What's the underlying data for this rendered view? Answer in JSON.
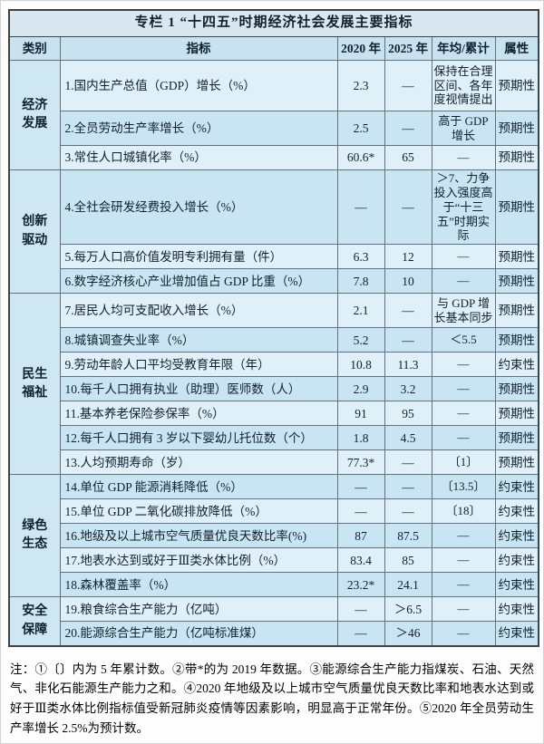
{
  "table": {
    "title": "专栏 1 “十四五”时期经济社会发展主要指标",
    "columns": [
      "类别",
      "指标",
      "2020 年",
      "2025 年",
      "年均/累计",
      "属性"
    ],
    "categories": [
      {
        "label": "经济发展"
      },
      {
        "label": "创新驱动"
      },
      {
        "label": "民生福祉"
      },
      {
        "label": "绿色生态"
      },
      {
        "label": "安全保障"
      }
    ],
    "rows": [
      {
        "indicator": "1.国内生产总值（GDP）增长（%）",
        "y2020": "2.3",
        "y2025": "—",
        "annual": "保持在合理区间、各年度视情提出",
        "attr": "预期性"
      },
      {
        "indicator": "2.全员劳动生产率增长（%）",
        "y2020": "2.5",
        "y2025": "—",
        "annual": "高于 GDP 增长",
        "attr": "预期性"
      },
      {
        "indicator": "3.常住人口城镇化率（%）",
        "y2020": "60.6*",
        "y2025": "65",
        "annual": "—",
        "attr": "预期性"
      },
      {
        "indicator": "4.全社会研发经费投入增长（%）",
        "y2020": "—",
        "y2025": "—",
        "annual": "＞7、力争投入强度高于“十三五”时期实际",
        "attr": "预期性"
      },
      {
        "indicator": "5.每万人口高价值发明专利拥有量（件）",
        "y2020": "6.3",
        "y2025": "12",
        "annual": "—",
        "attr": "预期性"
      },
      {
        "indicator": "6.数字经济核心产业增加值占 GDP 比重（%）",
        "y2020": "7.8",
        "y2025": "10",
        "annual": "—",
        "attr": "预期性"
      },
      {
        "indicator": "7.居民人均可支配收入增长（%）",
        "y2020": "2.1",
        "y2025": "—",
        "annual": "与 GDP 增长基本同步",
        "attr": "预期性"
      },
      {
        "indicator": "8.城镇调查失业率（%）",
        "y2020": "5.2",
        "y2025": "—",
        "annual": "＜5.5",
        "attr": "预期性"
      },
      {
        "indicator": "9.劳动年龄人口平均受教育年限（年）",
        "y2020": "10.8",
        "y2025": "11.3",
        "annual": "—",
        "attr": "约束性"
      },
      {
        "indicator": "10.每千人口拥有执业（助理）医师数（人）",
        "y2020": "2.9",
        "y2025": "3.2",
        "annual": "—",
        "attr": "预期性"
      },
      {
        "indicator": "11.基本养老保险参保率（%）",
        "y2020": "91",
        "y2025": "95",
        "annual": "—",
        "attr": "预期性"
      },
      {
        "indicator": "12.每千人口拥有 3 岁以下婴幼儿托位数（个）",
        "y2020": "1.8",
        "y2025": "4.5",
        "annual": "—",
        "attr": "预期性"
      },
      {
        "indicator": "13.人均预期寿命（岁）",
        "y2020": "77.3*",
        "y2025": "—",
        "annual": "〔1〕",
        "attr": "预期性"
      },
      {
        "indicator": "14.单位 GDP 能源消耗降低（%）",
        "y2020": "—",
        "y2025": "—",
        "annual": "〔13.5〕",
        "attr": "约束性"
      },
      {
        "indicator": "15.单位 GDP 二氧化碳排放降低（%）",
        "y2020": "—",
        "y2025": "—",
        "annual": "〔18〕",
        "attr": "约束性"
      },
      {
        "indicator": "16.地级及以上城市空气质量优良天数比率(%)",
        "y2020": "87",
        "y2025": "87.5",
        "annual": "—",
        "attr": "约束性"
      },
      {
        "indicator": "17.地表水达到或好于Ⅲ类水体比例（%）",
        "y2020": "83.4",
        "y2025": "85",
        "annual": "—",
        "attr": "约束性"
      },
      {
        "indicator": "18.森林覆盖率（%）",
        "y2020": "23.2*",
        "y2025": "24.1",
        "annual": "—",
        "attr": "约束性"
      },
      {
        "indicator": "19.粮食综合生产能力（亿吨）",
        "y2020": "—",
        "y2025": "＞6.5",
        "annual": "—",
        "attr": "约束性"
      },
      {
        "indicator": "20.能源综合生产能力（亿吨标准煤）",
        "y2020": "—",
        "y2025": "＞46",
        "annual": "—",
        "attr": "约束性"
      }
    ]
  },
  "notes": "注：①〔〕内为 5 年累计数。②带*的为 2019 年数据。③能源综合生产能力指煤炭、石油、天然气、非化石能源生产能力之和。④2020 年地级及以上城市空气质量优良天数比率和地表水达到或好于Ⅲ类水体比例指标值受新冠肺炎疫情等因素影响，明显高于正常年份。⑤2020 年全员劳动生产率增长 2.5%为预计数。",
  "colors": {
    "row_light": "#dff0f8",
    "row_dark": "#c9e4f2",
    "header_bg": "#c9e2f0",
    "title_bg": "#dbe7f0",
    "category_bg": "#cfe7f3",
    "border": "#3d4448",
    "text": "#10212e"
  }
}
